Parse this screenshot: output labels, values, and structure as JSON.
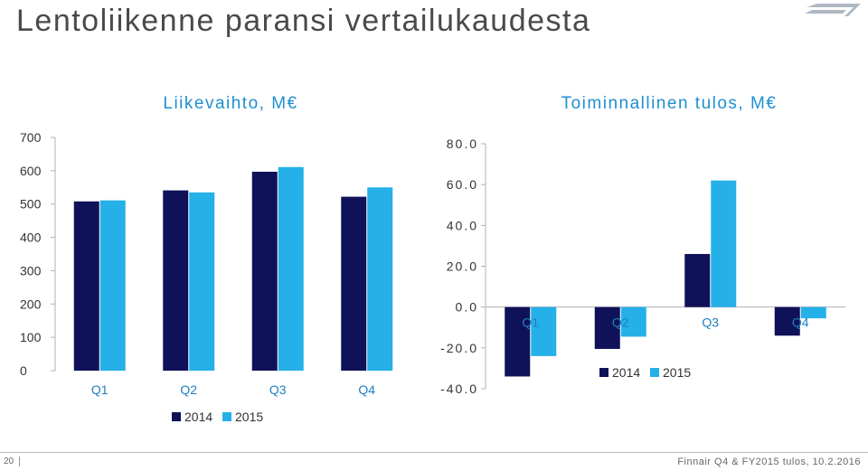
{
  "slide": {
    "title": "Lentoliikenne paransi vertailukaudesta",
    "page_number": "20",
    "footer": "Finnair Q4 & FY2015 tulos, 10.2.2016"
  },
  "colors": {
    "series_2014": "#0f1258",
    "series_2015": "#25b0e8",
    "title_blue": "#1f8fd0",
    "category_blue": "#1e7fc0"
  },
  "chart_data": [
    {
      "type": "bar",
      "title": "Liikevaihto, M€",
      "categories": [
        "Q1",
        "Q2",
        "Q3",
        "Q4"
      ],
      "series": [
        {
          "name": "2014",
          "values": [
            508,
            541,
            597,
            522
          ]
        },
        {
          "name": "2015",
          "values": [
            511,
            535,
            611,
            550
          ]
        }
      ],
      "ylim": [
        0,
        700
      ],
      "yticks": [
        "0",
        "100",
        "200",
        "300",
        "400",
        "500",
        "600",
        "700"
      ],
      "legend": "bottom"
    },
    {
      "type": "bar",
      "title": "Toiminnallinen tulos, M€",
      "categories": [
        "Q1",
        "Q2",
        "Q3",
        "Q4"
      ],
      "series": [
        {
          "name": "2014",
          "values": [
            -34,
            -20.5,
            26,
            -14
          ]
        },
        {
          "name": "2015",
          "values": [
            -24,
            -14.5,
            62,
            -5.5
          ]
        }
      ],
      "ylim": [
        -40,
        80
      ],
      "yticks": [
        "-40.0",
        "-20.0",
        "0.0",
        "20.0",
        "40.0",
        "60.0",
        "80.0"
      ],
      "legend": "bottom"
    }
  ]
}
